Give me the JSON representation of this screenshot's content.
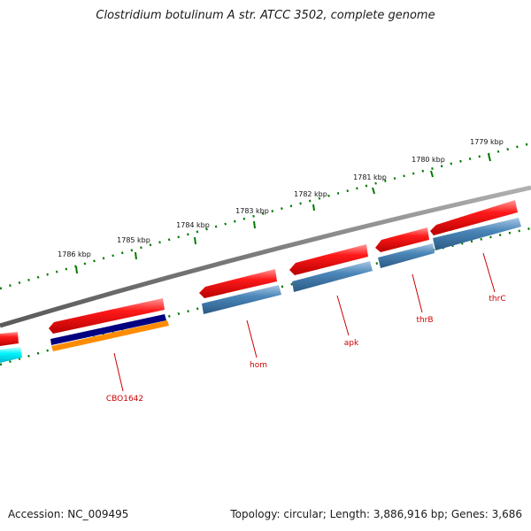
{
  "title": "Clostridium botulinum A str. ATCC 3502, complete genome",
  "footer": {
    "accession": "Accession: NC_009495",
    "summary": "Topology: circular; Length: 3,886,916 bp; Genes: 3,686"
  },
  "ruler": {
    "ticks": [
      {
        "label": "1779 kbp"
      },
      {
        "label": "1780 kbp"
      },
      {
        "label": "1781 kbp"
      },
      {
        "label": "1782 kbp"
      },
      {
        "label": "1783 kbp"
      },
      {
        "label": "1784 kbp"
      },
      {
        "label": "1785 kbp"
      },
      {
        "label": "1786 kbp"
      }
    ]
  },
  "gene_labels": [
    {
      "label": "CBO1642"
    },
    {
      "label": "hom"
    },
    {
      "label": "apk"
    },
    {
      "label": "thrB"
    },
    {
      "label": "thrC"
    }
  ],
  "colors": {
    "backbone": "#808080",
    "forward_gene": "#ff0000",
    "cds": "#4682b4",
    "cyan_feature": "#00ffff",
    "navy_feature": "#000080",
    "orange_feature": "#ff8c00",
    "ruler_tick": "#007a00",
    "label_text": "#cc0000"
  }
}
